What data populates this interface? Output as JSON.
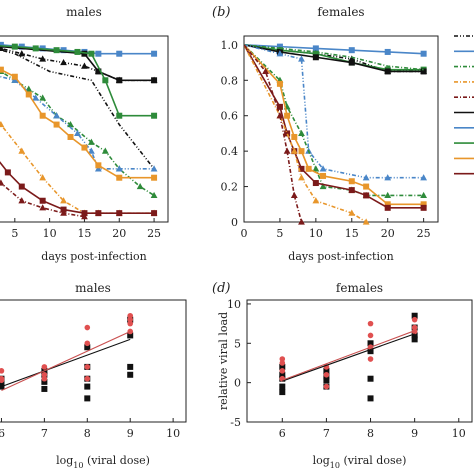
{
  "chart_data": [
    {
      "id": "a",
      "type": "line",
      "title": "males",
      "panel_label": "",
      "xlabel": "days post-infection",
      "ylabel": "",
      "xlim": [
        0,
        27
      ],
      "ylim": [
        0,
        1.05
      ],
      "xticks": [
        5,
        10,
        15,
        20,
        25
      ],
      "yticks": [],
      "series": [
        {
          "color": "#4a86c8",
          "dash": "",
          "marker": "square",
          "x": [
            0,
            3,
            6,
            9,
            12,
            15,
            17,
            20,
            25
          ],
          "y": [
            1.0,
            1.0,
            0.99,
            0.98,
            0.97,
            0.96,
            0.95,
            0.95,
            0.95
          ]
        },
        {
          "color": "#111111",
          "dash": "4 2 1 2 1 2",
          "marker": "triangle",
          "x": [
            0,
            3,
            6,
            9,
            12,
            15,
            17,
            20,
            25
          ],
          "y": [
            1.0,
            0.98,
            0.95,
            0.92,
            0.9,
            0.88,
            0.85,
            0.8,
            0.8
          ]
        },
        {
          "color": "#111111",
          "dash": "",
          "marker": "square",
          "x": [
            0,
            15,
            17,
            20,
            25
          ],
          "y": [
            1.0,
            0.95,
            0.85,
            0.8,
            0.8
          ]
        },
        {
          "color": "#2e8b3a",
          "dash": "",
          "marker": "square",
          "x": [
            0,
            5,
            8,
            11,
            14,
            16,
            18,
            20,
            25
          ],
          "y": [
            1.0,
            0.99,
            0.98,
            0.97,
            0.96,
            0.95,
            0.8,
            0.6,
            0.6
          ]
        },
        {
          "color": "#111111",
          "dash": "4 2 1 2 1 2",
          "marker": "none",
          "x": [
            0,
            5,
            10,
            16,
            20,
            25
          ],
          "y": [
            1.0,
            0.95,
            0.85,
            0.8,
            0.55,
            0.3
          ]
        },
        {
          "color": "#2e8b3a",
          "dash": "4 2 1 2",
          "marker": "triangle",
          "x": [
            0,
            3,
            5,
            7,
            9,
            11,
            13,
            16,
            18,
            20,
            23,
            25
          ],
          "y": [
            0.9,
            0.85,
            0.8,
            0.75,
            0.7,
            0.6,
            0.55,
            0.45,
            0.4,
            0.3,
            0.2,
            0.15
          ]
        },
        {
          "color": "#4a86c8",
          "dash": "4 2 1 2 1 2",
          "marker": "triangle",
          "x": [
            0,
            5,
            8,
            11,
            14,
            16,
            17,
            20,
            25
          ],
          "y": [
            0.85,
            0.8,
            0.7,
            0.6,
            0.5,
            0.4,
            0.3,
            0.3,
            0.3
          ]
        },
        {
          "color": "#e8962b",
          "dash": "",
          "marker": "square",
          "x": [
            0,
            3,
            5,
            7,
            9,
            11,
            13,
            15,
            17,
            20,
            25
          ],
          "y": [
            0.88,
            0.86,
            0.82,
            0.72,
            0.6,
            0.55,
            0.48,
            0.42,
            0.32,
            0.25,
            0.25
          ]
        },
        {
          "color": "#e8962b",
          "dash": "4 2 1 2",
          "marker": "triangle",
          "x": [
            0,
            3,
            6,
            9,
            12,
            15,
            17,
            20,
            25
          ],
          "y": [
            0.75,
            0.55,
            0.4,
            0.25,
            0.12,
            0.05,
            0.05,
            0.05,
            0.05
          ]
        },
        {
          "color": "#7b1a1a",
          "dash": "",
          "marker": "square",
          "x": [
            0,
            2,
            4,
            6,
            9,
            12,
            15,
            17,
            20,
            25
          ],
          "y": [
            0.5,
            0.38,
            0.28,
            0.2,
            0.12,
            0.07,
            0.05,
            0.05,
            0.05,
            0.05
          ]
        },
        {
          "color": "#7b1a1a",
          "dash": "4 2 1 2",
          "marker": "triangle",
          "x": [
            0,
            3,
            6,
            9,
            12,
            15
          ],
          "y": [
            0.4,
            0.22,
            0.12,
            0.08,
            0.05,
            0.03
          ]
        }
      ]
    },
    {
      "id": "b",
      "type": "line",
      "title": "females",
      "panel_label": "(b)",
      "xlabel": "days post-infection",
      "ylabel": "",
      "xlim": [
        0,
        27
      ],
      "ylim": [
        0,
        1.05
      ],
      "xticks": [
        0,
        5,
        10,
        15,
        20,
        25
      ],
      "yticks": [
        0,
        0.2,
        0.4,
        0.6,
        0.8,
        1.0
      ],
      "ytick_labels": [
        "0",
        "0.2",
        "0.4",
        "0.6",
        "0.8",
        "1.0"
      ],
      "series": [
        {
          "color": "#4a86c8",
          "dash": "",
          "marker": "square",
          "x": [
            0,
            5,
            10,
            15,
            20,
            25
          ],
          "y": [
            1.0,
            0.99,
            0.98,
            0.97,
            0.96,
            0.95
          ]
        },
        {
          "color": "#111111",
          "dash": "4 2 1 2 1 2",
          "marker": "triangle",
          "x": [
            0,
            5,
            10,
            15,
            20,
            25
          ],
          "y": [
            1.0,
            0.97,
            0.95,
            0.92,
            0.85,
            0.85
          ]
        },
        {
          "color": "#2e8b3a",
          "dash": "",
          "marker": "square",
          "x": [
            0,
            5,
            10,
            15,
            20,
            25
          ],
          "y": [
            1.0,
            0.97,
            0.95,
            0.9,
            0.86,
            0.86
          ]
        },
        {
          "color": "#111111",
          "dash": "",
          "marker": "square",
          "x": [
            0,
            5,
            10,
            15,
            20,
            25
          ],
          "y": [
            1.0,
            0.96,
            0.93,
            0.9,
            0.85,
            0.85
          ]
        },
        {
          "color": "#2e8b3a",
          "dash": "4 2 1 2",
          "marker": "none",
          "x": [
            0,
            5,
            10,
            15,
            20,
            25
          ],
          "y": [
            1.0,
            0.98,
            0.96,
            0.93,
            0.88,
            0.86
          ]
        },
        {
          "color": "#4a86c8",
          "dash": "4 2 1 2 1 2",
          "marker": "triangle",
          "x": [
            0,
            5,
            8,
            9,
            11,
            17,
            20,
            25
          ],
          "y": [
            1.0,
            0.95,
            0.92,
            0.4,
            0.3,
            0.25,
            0.25,
            0.25
          ]
        },
        {
          "color": "#2e8b3a",
          "dash": "4 2 1 2",
          "marker": "triangle",
          "x": [
            0,
            5,
            6,
            8,
            10,
            11,
            15,
            17,
            20,
            25
          ],
          "y": [
            1.0,
            0.8,
            0.65,
            0.5,
            0.3,
            0.2,
            0.18,
            0.15,
            0.15,
            0.15
          ]
        },
        {
          "color": "#e8962b",
          "dash": "",
          "marker": "square",
          "x": [
            0,
            5,
            6,
            7,
            8,
            9,
            11,
            15,
            17,
            20,
            25
          ],
          "y": [
            1.0,
            0.78,
            0.6,
            0.48,
            0.4,
            0.3,
            0.26,
            0.23,
            0.2,
            0.1,
            0.1
          ]
        },
        {
          "color": "#7b1a1a",
          "dash": "",
          "marker": "square",
          "x": [
            0,
            5,
            6,
            7,
            8,
            10,
            15,
            17,
            20,
            25
          ],
          "y": [
            1.0,
            0.65,
            0.5,
            0.4,
            0.3,
            0.22,
            0.18,
            0.15,
            0.08,
            0.08
          ]
        },
        {
          "color": "#e8962b",
          "dash": "4 2 1 2",
          "marker": "triangle",
          "x": [
            0,
            5,
            7,
            8,
            10,
            15,
            17
          ],
          "y": [
            1.0,
            0.6,
            0.4,
            0.25,
            0.12,
            0.05,
            0.0
          ]
        },
        {
          "color": "#7b1a1a",
          "dash": "4 2 1 2",
          "marker": "triangle",
          "x": [
            0,
            3,
            5,
            6,
            7,
            8
          ],
          "y": [
            1.0,
            0.85,
            0.6,
            0.4,
            0.15,
            0.0
          ]
        }
      ]
    },
    {
      "id": "c",
      "type": "scatter",
      "title": "males",
      "panel_label": "",
      "xlabel": "log10 (viral dose)",
      "xlabel_parts": {
        "pre": "log",
        "sub": "10",
        "post": " (viral dose)"
      },
      "ylabel": "",
      "xlim": [
        5.5,
        10.3
      ],
      "ylim": [
        -5,
        10.5
      ],
      "xticks": [
        6,
        7,
        8,
        9,
        10
      ],
      "yticks": [],
      "points": {
        "black": {
          "color": "#111111",
          "marker": "square",
          "x": [
            6,
            6,
            6,
            6,
            7,
            7,
            7,
            7,
            8,
            8,
            8,
            8,
            8,
            9,
            9,
            9,
            9
          ],
          "y": [
            -0.5,
            -0.2,
            0.2,
            0.5,
            0.1,
            -0.8,
            1.0,
            1.5,
            4.5,
            2.0,
            -0.5,
            -2.0,
            0.5,
            6.0,
            8.0,
            1.0,
            2.0
          ]
        },
        "red": {
          "color": "#e05050",
          "marker": "circle",
          "x": [
            6,
            6,
            6,
            7,
            7,
            7,
            8,
            8,
            8,
            8,
            9,
            9,
            9,
            9
          ],
          "y": [
            0.5,
            1.5,
            0.3,
            1.0,
            2.0,
            0.5,
            5.0,
            7.0,
            2.0,
            0.5,
            7.5,
            8.5,
            8.0,
            6.5
          ]
        }
      },
      "fits": [
        {
          "color": "#111111",
          "x": [
            6,
            9
          ],
          "y": [
            -0.5,
            5.5
          ]
        },
        {
          "color": "#c95050",
          "x": [
            6,
            9
          ],
          "y": [
            -1.0,
            6.5
          ]
        }
      ]
    },
    {
      "id": "d",
      "type": "scatter",
      "title": "females",
      "panel_label": "(d)",
      "xlabel": "log10 (viral dose)",
      "xlabel_parts": {
        "pre": "log",
        "sub": "10",
        "post": " (viral dose)"
      },
      "ylabel": "relative viral load",
      "xlim": [
        5.2,
        10.3
      ],
      "ylim": [
        -5,
        10.5
      ],
      "xticks": [
        6,
        7,
        8,
        9,
        10
      ],
      "yticks": [
        -5,
        0,
        5,
        10
      ],
      "points": {
        "black": {
          "color": "#111111",
          "marker": "square",
          "x": [
            6,
            6,
            6,
            6,
            6,
            7,
            7,
            7,
            7,
            8,
            8,
            8,
            8,
            9,
            9,
            9,
            9
          ],
          "y": [
            2.0,
            0.5,
            -0.5,
            1.0,
            -1.2,
            1.5,
            0.3,
            -0.5,
            0.8,
            5.0,
            4.0,
            0.5,
            -2.0,
            8.5,
            6.0,
            7.0,
            5.5
          ]
        },
        "red": {
          "color": "#e05050",
          "marker": "circle",
          "x": [
            6,
            6,
            6,
            6,
            7,
            7,
            7,
            8,
            8,
            8,
            8,
            9,
            9,
            9
          ],
          "y": [
            3.0,
            2.5,
            1.5,
            0.5,
            1.0,
            -0.5,
            2.0,
            7.5,
            6.0,
            3.0,
            4.5,
            7.0,
            8.0,
            6.5
          ]
        }
      },
      "fits": [
        {
          "color": "#111111",
          "x": [
            6,
            9
          ],
          "y": [
            0.2,
            6.2
          ]
        },
        {
          "color": "#c95050",
          "x": [
            6,
            9
          ],
          "y": [
            0.3,
            6.6
          ]
        }
      ]
    }
  ],
  "legend_b": {
    "entries": [
      {
        "color": "#111111",
        "dash": "4 2 1 2 1 2"
      },
      {
        "color": "#4a86c8",
        "dash": ""
      },
      {
        "color": "#2e8b3a",
        "dash": "4 2 1 2"
      },
      {
        "color": "#e8962b",
        "dash": "4 2 1 2"
      },
      {
        "color": "#7b1a1a",
        "dash": "4 2 1 2"
      },
      {
        "color": "#111111",
        "dash": ""
      },
      {
        "color": "#4a86c8",
        "dash": ""
      },
      {
        "color": "#2e8b3a",
        "dash": ""
      },
      {
        "color": "#e8962b",
        "dash": ""
      },
      {
        "color": "#7b1a1a",
        "dash": ""
      }
    ]
  }
}
